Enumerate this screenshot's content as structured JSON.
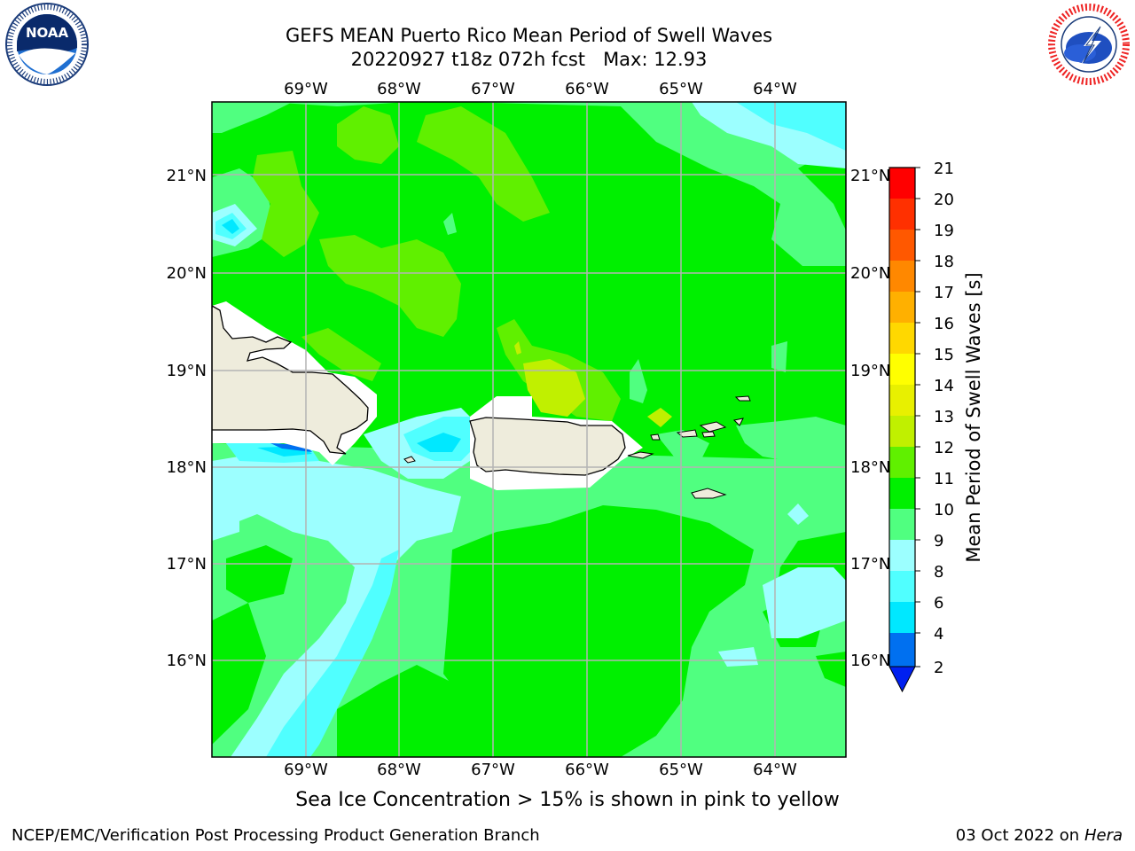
{
  "header": {
    "title_line1": "GEFS MEAN Puerto Rico Mean Period of Swell Waves",
    "title_line2": "20220927 t18z 072h fcst   Max: 12.93"
  },
  "logos": {
    "left": {
      "icon": "noaa-logo-icon",
      "text": "NOAA",
      "ring_text": "NATIONAL OCEANIC AND ATMOSPHERIC ADMINISTRATION · U.S. DEPARTMENT OF COMMERCE"
    },
    "right": {
      "icon": "nws-logo-icon",
      "ring_text": "NATIONAL WEATHER SERVICE"
    }
  },
  "map": {
    "lon_labels": [
      "69°W",
      "68°W",
      "67°W",
      "66°W",
      "65°W",
      "64°W"
    ],
    "lat_labels": [
      "21°N",
      "20°N",
      "19°N",
      "18°N",
      "17°N",
      "16°N"
    ],
    "land_color": "#eeecdc",
    "coastline_color": "#000000",
    "grid_color": "#b4b4b4"
  },
  "colorbar": {
    "label": "Mean Period of Swell Waves [s]",
    "ticks": [
      "21",
      "20",
      "19",
      "18",
      "17",
      "16",
      "15",
      "14",
      "13",
      "12",
      "11",
      "10",
      "9",
      "8",
      "6",
      "4",
      "2"
    ],
    "colors": {
      "2-4": "#0070f0",
      "4-6": "#00e8ff",
      "6-8": "#50ffff",
      "8-9": "#9cffff",
      "9-10": "#50ff80",
      "10-11": "#00f000",
      "11-12": "#60f000",
      "12-13": "#c0f000",
      "13-14": "#e8f000",
      "14-15": "#ffff00",
      "15-16": "#ffd800",
      "16-17": "#ffb000",
      "17-18": "#ff8800",
      "18-19": "#ff5800",
      "19-20": "#ff3000",
      "20-21": "#ff0000",
      "below-2": "#0020f0"
    }
  },
  "caption": "Sea Ice Concentration > 15% is shown in pink to yellow",
  "footer": {
    "left": "NCEP/EMC/Verification Post Processing Product Generation Branch",
    "date": "03 Oct 2022 on ",
    "machine": "Hera"
  }
}
